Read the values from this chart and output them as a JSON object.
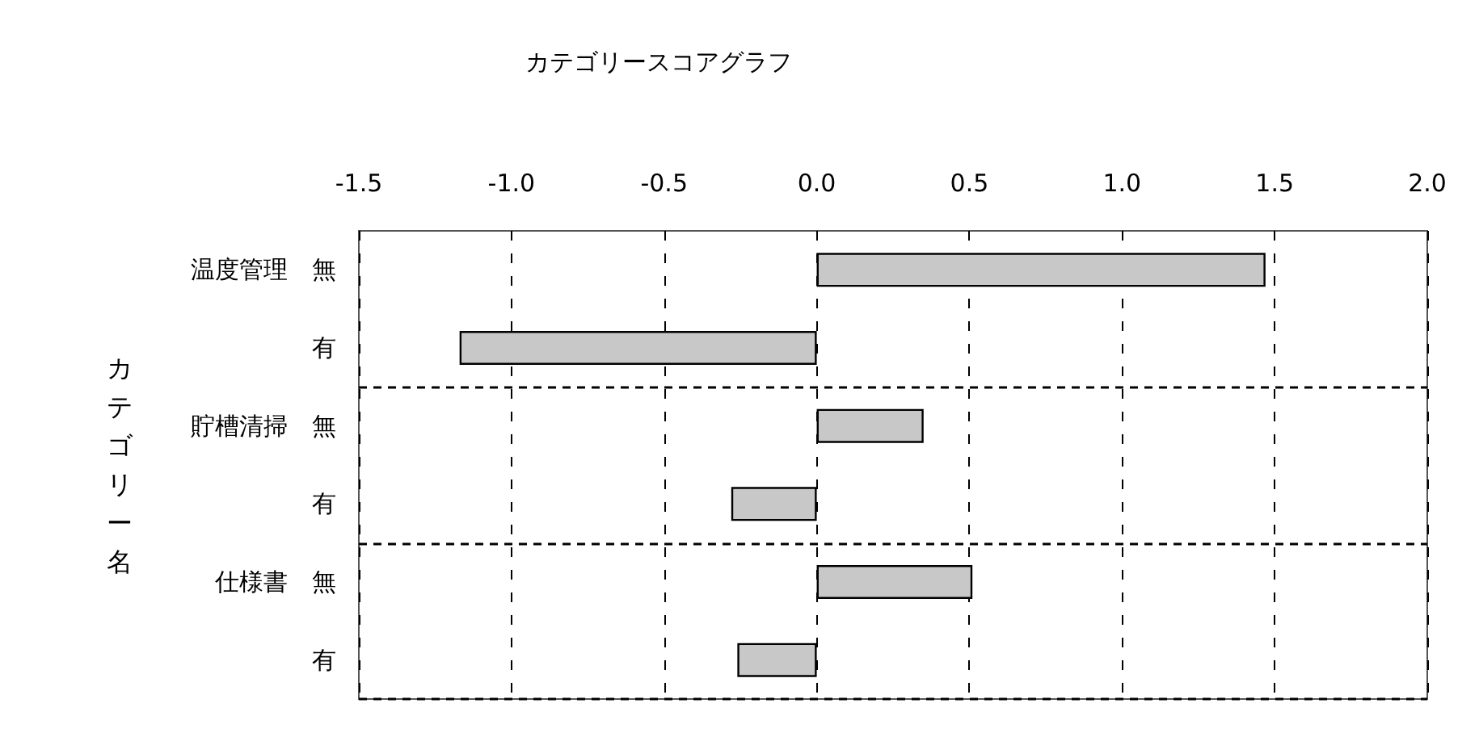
{
  "chart_data": {
    "type": "bar",
    "orientation": "horizontal",
    "title": "カテゴリースコアグラフ",
    "ylabel": "カテゴリー名",
    "categories": [
      "温度管理　無",
      "有",
      "貯槽清掃　無",
      "有",
      "仕様書　無",
      "有"
    ],
    "values": [
      1.47,
      -1.17,
      0.35,
      -0.28,
      0.51,
      -0.26
    ],
    "color": "#c8c8c8",
    "xlim": [
      -1.5,
      2.0
    ],
    "xticks": [
      -1.5,
      {
        "value": -1,
        "label": "-1.0"
      },
      -0.5,
      {
        "value": 0,
        "label": "0.0"
      },
      0.5,
      {
        "value": 1,
        "label": "1.0"
      },
      1.5,
      {
        "value": 2,
        "label": "2.0"
      }
    ],
    "grid": true
  }
}
